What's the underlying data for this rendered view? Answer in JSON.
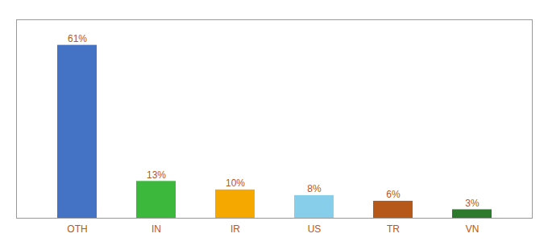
{
  "chart_data": {
    "type": "bar",
    "categories": [
      "OTH",
      "IN",
      "IR",
      "US",
      "TR",
      "VN"
    ],
    "values": [
      61,
      13,
      10,
      8,
      6,
      3
    ],
    "value_labels": [
      "61%",
      "13%",
      "10%",
      "8%",
      "6%",
      "3%"
    ],
    "data_labels": true,
    "colors": [
      "#4472c4",
      "#3cb93c",
      "#f5a800",
      "#87ceeb",
      "#b5581a",
      "#2d7a2d"
    ],
    "ylim": [
      0,
      70
    ],
    "grid": false,
    "tick_labels": "x"
  }
}
